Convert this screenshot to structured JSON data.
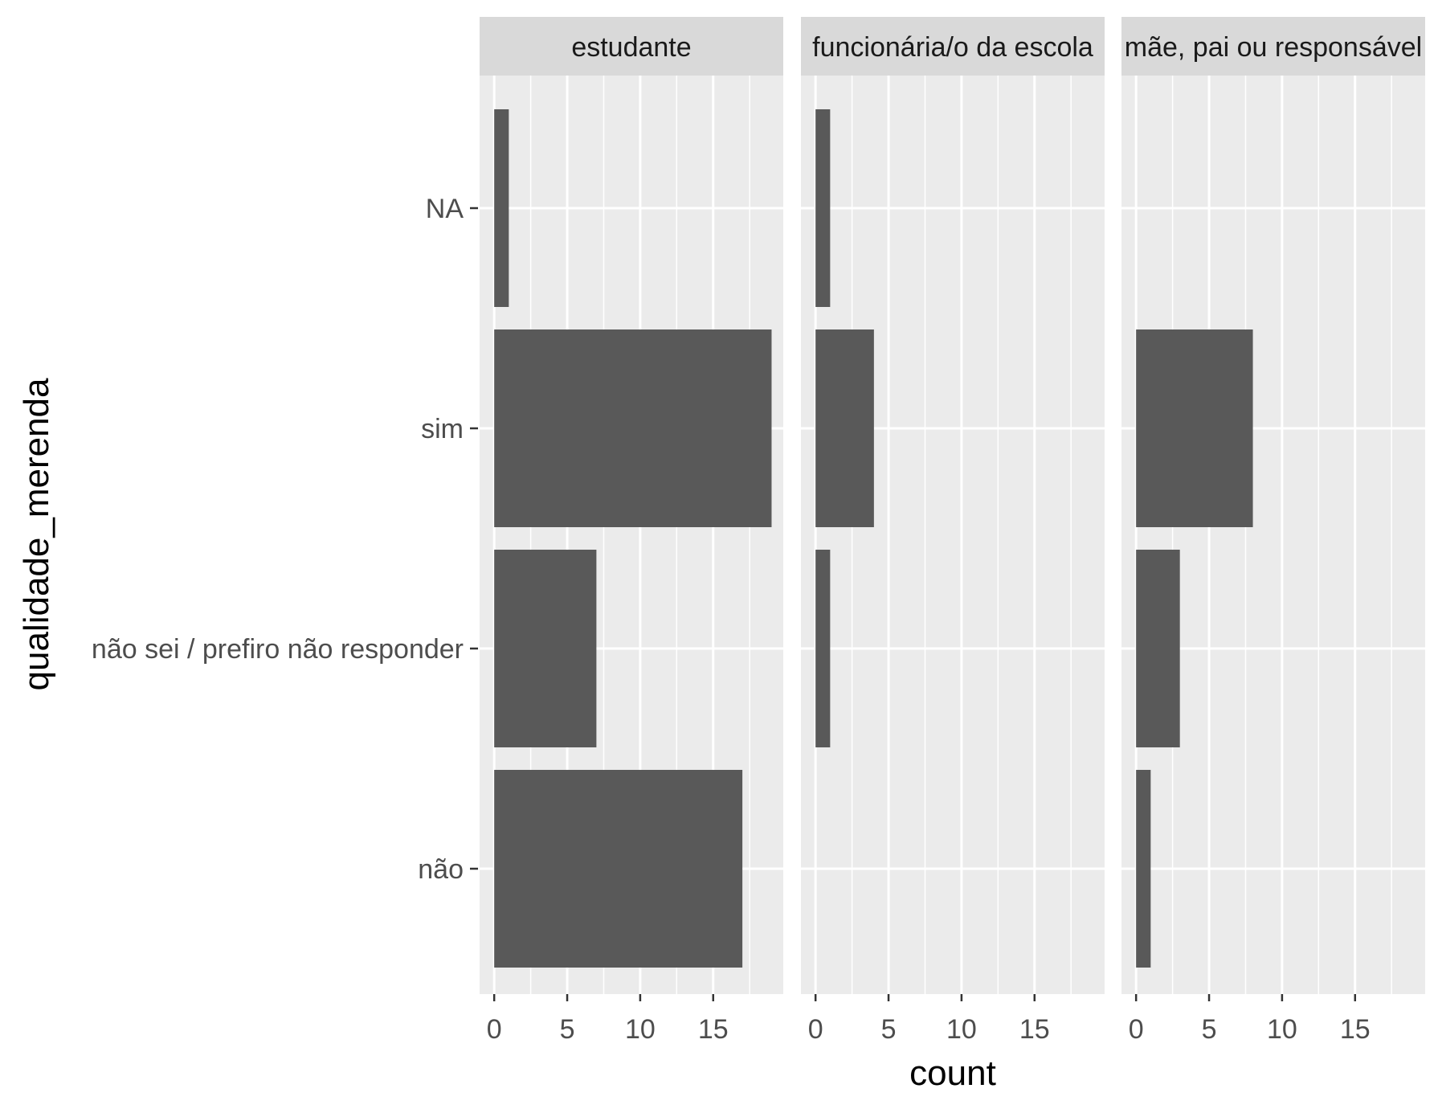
{
  "chart_data": {
    "type": "bar",
    "orientation": "horizontal",
    "facet_by": "panels",
    "xlabel": "count",
    "ylabel": "qualidade_merenda",
    "categories": [
      "NA",
      "sim",
      "não sei / prefiro não responder",
      "não"
    ],
    "x_ticks": [
      0,
      5,
      10,
      15
    ],
    "xlim": [
      -1,
      19.8
    ],
    "grid": true,
    "legend": "none",
    "colors": {
      "bar": "#595959",
      "panel_background": "#ebebeb",
      "grid_line": "#ffffff",
      "strip_background": "#d9d9d9",
      "text": "#000000",
      "tick_label": "#4d4d4d"
    },
    "panels": [
      {
        "label": "estudante",
        "values": [
          1,
          19,
          7,
          17
        ]
      },
      {
        "label": "funcionária/o da escola",
        "values": [
          1,
          4,
          1,
          0
        ]
      },
      {
        "label": "mãe, pai ou responsável",
        "values": [
          0,
          8,
          3,
          1
        ]
      }
    ]
  }
}
